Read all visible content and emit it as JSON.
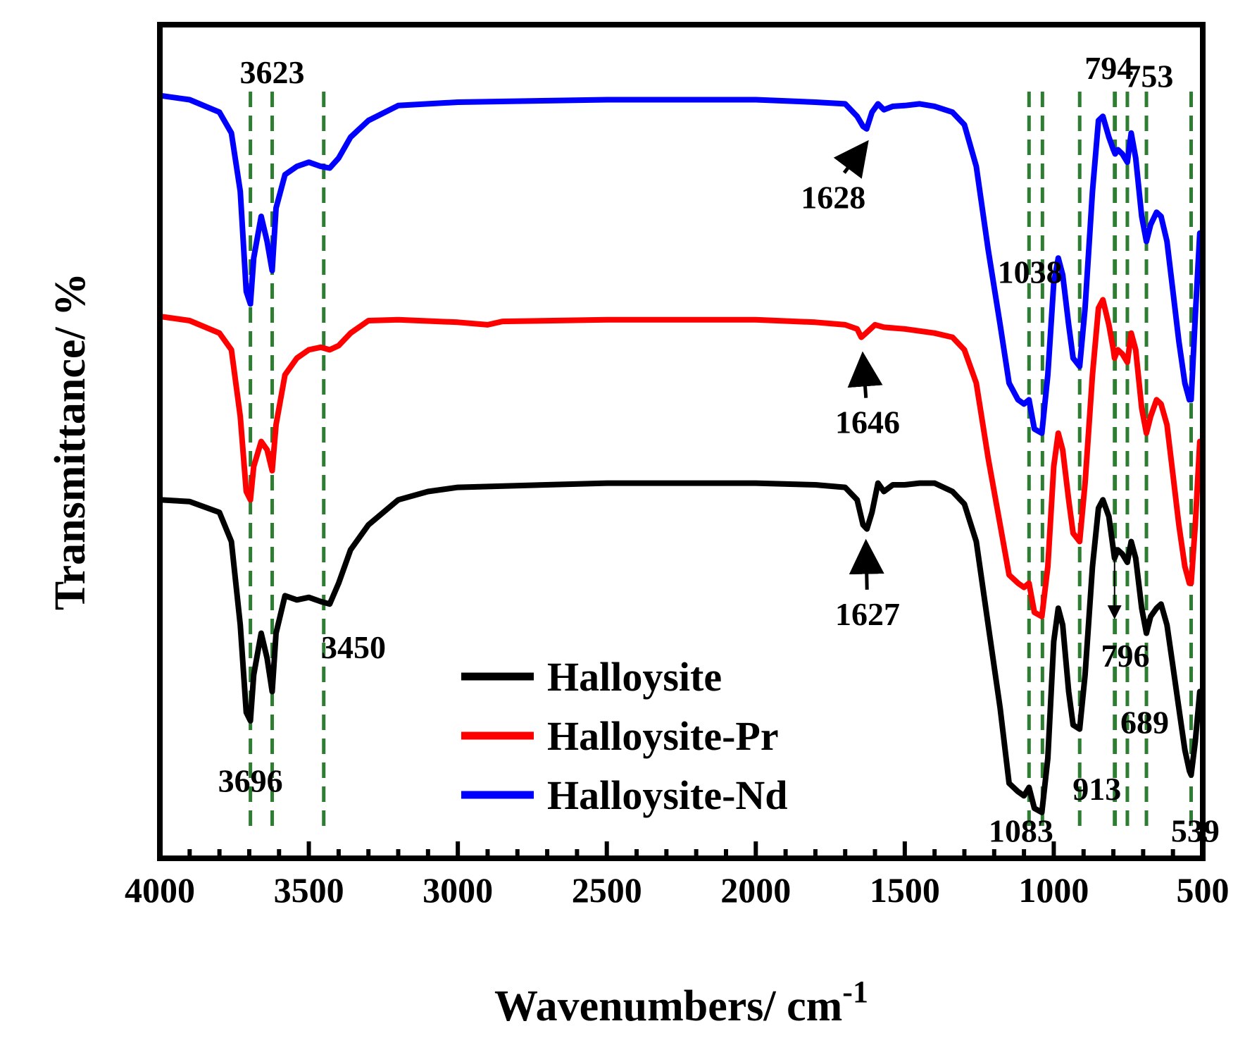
{
  "chart_data": {
    "type": "line",
    "xlabel": "Wavenumbers/ cm",
    "xlabel_superscript": "-1",
    "ylabel": "Transmittance/ %",
    "xlim": [
      4000,
      500
    ],
    "x_reversed": true,
    "ylim": [
      0,
      100
    ],
    "x_ticks": [
      4000,
      3500,
      3000,
      2500,
      2000,
      1500,
      1000,
      500
    ],
    "x_tick_labels": [
      "4000",
      "3500",
      "3000",
      "2500",
      "2000",
      "1500",
      "1000",
      "500"
    ],
    "grid": false,
    "legend_position": "bottom-center",
    "series": [
      {
        "name": "Halloysite",
        "color": "#000000",
        "points": [
          [
            4000,
            43
          ],
          [
            3900,
            42.8
          ],
          [
            3800,
            41.5
          ],
          [
            3760,
            38
          ],
          [
            3730,
            28
          ],
          [
            3710,
            17.5
          ],
          [
            3696,
            16.5
          ],
          [
            3685,
            22
          ],
          [
            3660,
            27
          ],
          [
            3640,
            24
          ],
          [
            3623,
            20
          ],
          [
            3610,
            27
          ],
          [
            3580,
            31.5
          ],
          [
            3540,
            31
          ],
          [
            3500,
            31.3
          ],
          [
            3460,
            30.8
          ],
          [
            3430,
            30.5
          ],
          [
            3400,
            33
          ],
          [
            3360,
            37
          ],
          [
            3300,
            40
          ],
          [
            3200,
            43
          ],
          [
            3100,
            44
          ],
          [
            3000,
            44.5
          ],
          [
            2500,
            45
          ],
          [
            2000,
            45
          ],
          [
            1800,
            44.8
          ],
          [
            1700,
            44.5
          ],
          [
            1660,
            43
          ],
          [
            1640,
            40
          ],
          [
            1627,
            39.5
          ],
          [
            1610,
            41.5
          ],
          [
            1590,
            45
          ],
          [
            1570,
            44
          ],
          [
            1540,
            44.8
          ],
          [
            1500,
            44.8
          ],
          [
            1450,
            45
          ],
          [
            1400,
            45
          ],
          [
            1340,
            44
          ],
          [
            1300,
            42.5
          ],
          [
            1260,
            38
          ],
          [
            1220,
            28
          ],
          [
            1180,
            18
          ],
          [
            1150,
            9
          ],
          [
            1120,
            8
          ],
          [
            1100,
            7.5
          ],
          [
            1083,
            8.5
          ],
          [
            1065,
            6
          ],
          [
            1040,
            5.5
          ],
          [
            1020,
            12
          ],
          [
            1000,
            26
          ],
          [
            985,
            30
          ],
          [
            970,
            28
          ],
          [
            950,
            20
          ],
          [
            935,
            16
          ],
          [
            913,
            15.5
          ],
          [
            895,
            22
          ],
          [
            870,
            35
          ],
          [
            850,
            42
          ],
          [
            835,
            43
          ],
          [
            815,
            41
          ],
          [
            800,
            37
          ],
          [
            796,
            36
          ],
          [
            785,
            37
          ],
          [
            770,
            36.5
          ],
          [
            753,
            35.5
          ],
          [
            740,
            38
          ],
          [
            725,
            36
          ],
          [
            705,
            30
          ],
          [
            689,
            27
          ],
          [
            675,
            29
          ],
          [
            655,
            30
          ],
          [
            640,
            30.5
          ],
          [
            620,
            28
          ],
          [
            600,
            23
          ],
          [
            580,
            18
          ],
          [
            560,
            13
          ],
          [
            545,
            10.5
          ],
          [
            539,
            10
          ],
          [
            525,
            14
          ],
          [
            510,
            20
          ]
        ]
      },
      {
        "name": "Halloysite-Pr",
        "color": "#ff0000",
        "points": [
          [
            4000,
            65
          ],
          [
            3900,
            64.5
          ],
          [
            3800,
            63
          ],
          [
            3760,
            61
          ],
          [
            3730,
            53
          ],
          [
            3710,
            44
          ],
          [
            3696,
            43
          ],
          [
            3685,
            47
          ],
          [
            3660,
            50
          ],
          [
            3640,
            49
          ],
          [
            3623,
            46.5
          ],
          [
            3610,
            52
          ],
          [
            3580,
            58
          ],
          [
            3540,
            60
          ],
          [
            3500,
            61
          ],
          [
            3460,
            61.3
          ],
          [
            3430,
            61
          ],
          [
            3400,
            61.5
          ],
          [
            3360,
            63
          ],
          [
            3300,
            64.5
          ],
          [
            3200,
            64.6
          ],
          [
            3000,
            64.3
          ],
          [
            2900,
            64
          ],
          [
            2850,
            64.4
          ],
          [
            2500,
            64.6
          ],
          [
            2000,
            64.6
          ],
          [
            1800,
            64.3
          ],
          [
            1700,
            64
          ],
          [
            1660,
            63.5
          ],
          [
            1646,
            62.5
          ],
          [
            1630,
            63
          ],
          [
            1600,
            64
          ],
          [
            1570,
            63.7
          ],
          [
            1500,
            63.5
          ],
          [
            1400,
            63
          ],
          [
            1340,
            62.5
          ],
          [
            1300,
            61
          ],
          [
            1260,
            57
          ],
          [
            1220,
            48
          ],
          [
            1180,
            40
          ],
          [
            1150,
            34
          ],
          [
            1120,
            33
          ],
          [
            1100,
            32.5
          ],
          [
            1083,
            33
          ],
          [
            1065,
            29.5
          ],
          [
            1040,
            29
          ],
          [
            1020,
            35
          ],
          [
            1000,
            47
          ],
          [
            985,
            51
          ],
          [
            970,
            49
          ],
          [
            950,
            43
          ],
          [
            935,
            39
          ],
          [
            913,
            38
          ],
          [
            895,
            45
          ],
          [
            870,
            58
          ],
          [
            850,
            66
          ],
          [
            835,
            67
          ],
          [
            815,
            64
          ],
          [
            800,
            61
          ],
          [
            796,
            60
          ],
          [
            785,
            61
          ],
          [
            770,
            60.5
          ],
          [
            753,
            59.5
          ],
          [
            740,
            63
          ],
          [
            725,
            61
          ],
          [
            705,
            54
          ],
          [
            689,
            51
          ],
          [
            675,
            53
          ],
          [
            655,
            55
          ],
          [
            640,
            54.5
          ],
          [
            620,
            52
          ],
          [
            600,
            46
          ],
          [
            580,
            40
          ],
          [
            560,
            35
          ],
          [
            545,
            33
          ],
          [
            539,
            33
          ],
          [
            525,
            40
          ],
          [
            510,
            50
          ]
        ]
      },
      {
        "name": "Halloysite-Nd",
        "color": "#0000ff",
        "points": [
          [
            4000,
            91.5
          ],
          [
            3900,
            91
          ],
          [
            3800,
            89.5
          ],
          [
            3760,
            87
          ],
          [
            3730,
            80
          ],
          [
            3710,
            68
          ],
          [
            3696,
            66.5
          ],
          [
            3685,
            72
          ],
          [
            3660,
            77
          ],
          [
            3640,
            74
          ],
          [
            3623,
            70.5
          ],
          [
            3610,
            78
          ],
          [
            3580,
            82
          ],
          [
            3540,
            83
          ],
          [
            3500,
            83.5
          ],
          [
            3460,
            83
          ],
          [
            3430,
            82.8
          ],
          [
            3400,
            84
          ],
          [
            3360,
            86.5
          ],
          [
            3300,
            88.5
          ],
          [
            3200,
            90.3
          ],
          [
            3000,
            90.7
          ],
          [
            2500,
            91
          ],
          [
            2000,
            91
          ],
          [
            1800,
            90.7
          ],
          [
            1700,
            90.5
          ],
          [
            1660,
            89
          ],
          [
            1640,
            87.8
          ],
          [
            1628,
            87.5
          ],
          [
            1610,
            89.5
          ],
          [
            1590,
            90.5
          ],
          [
            1570,
            89.8
          ],
          [
            1540,
            90.2
          ],
          [
            1500,
            90.3
          ],
          [
            1450,
            90.5
          ],
          [
            1400,
            90.2
          ],
          [
            1340,
            89.5
          ],
          [
            1300,
            88
          ],
          [
            1260,
            83
          ],
          [
            1220,
            73
          ],
          [
            1180,
            64
          ],
          [
            1150,
            57
          ],
          [
            1120,
            55
          ],
          [
            1100,
            54.5
          ],
          [
            1083,
            55
          ],
          [
            1065,
            51.5
          ],
          [
            1040,
            51
          ],
          [
            1020,
            58
          ],
          [
            1000,
            69
          ],
          [
            985,
            72
          ],
          [
            970,
            70
          ],
          [
            950,
            64
          ],
          [
            935,
            60
          ],
          [
            913,
            59
          ],
          [
            895,
            66
          ],
          [
            870,
            80
          ],
          [
            850,
            88.5
          ],
          [
            835,
            89
          ],
          [
            815,
            86.5
          ],
          [
            800,
            85
          ],
          [
            794,
            84.5
          ],
          [
            785,
            85
          ],
          [
            770,
            84.5
          ],
          [
            753,
            83.5
          ],
          [
            740,
            87
          ],
          [
            725,
            84
          ],
          [
            705,
            77
          ],
          [
            689,
            74
          ],
          [
            675,
            76
          ],
          [
            655,
            77.5
          ],
          [
            640,
            77
          ],
          [
            620,
            74
          ],
          [
            600,
            68
          ],
          [
            580,
            62
          ],
          [
            560,
            57
          ],
          [
            545,
            55
          ],
          [
            539,
            55
          ],
          [
            525,
            65
          ],
          [
            510,
            75
          ]
        ]
      }
    ],
    "reference_lines_x": [
      3696,
      3623,
      3450,
      1083,
      1038,
      913,
      796,
      794,
      753,
      689,
      539
    ],
    "annotations": [
      {
        "text": "3623",
        "x": 3623,
        "y": 93,
        "anchor": "middle"
      },
      {
        "text": "3696",
        "x": 3696,
        "y": 8,
        "anchor": "middle"
      },
      {
        "text": "3450",
        "x": 3350,
        "y": 24,
        "anchor": "middle"
      },
      {
        "text": "1628",
        "x": 1740,
        "y": 78,
        "anchor": "middle",
        "arrow_to": [
          1635,
          87
        ]
      },
      {
        "text": "1646",
        "x": 1625,
        "y": 51,
        "anchor": "middle",
        "arrow_to": [
          1640,
          61.5
        ]
      },
      {
        "text": "1627",
        "x": 1625,
        "y": 28,
        "anchor": "middle",
        "arrow_to": [
          1630,
          39
        ]
      },
      {
        "text": "1038",
        "x": 1080,
        "y": 69,
        "anchor": "middle"
      },
      {
        "text": "1083",
        "x": 1110,
        "y": 2,
        "anchor": "middle"
      },
      {
        "text": "913",
        "x": 855,
        "y": 7,
        "anchor": "middle"
      },
      {
        "text": "794",
        "x": 815,
        "y": 93.5,
        "anchor": "middle"
      },
      {
        "text": "753",
        "x": 680,
        "y": 92.5,
        "anchor": "middle"
      },
      {
        "text": "796",
        "x": 760,
        "y": 23,
        "anchor": "middle",
        "arrow_from": [
          796,
          36.5
        ],
        "arrow_to": [
          796,
          29
        ]
      },
      {
        "text": "689",
        "x": 695,
        "y": 15,
        "anchor": "middle"
      },
      {
        "text": "539",
        "x": 525,
        "y": 2,
        "anchor": "middle"
      }
    ]
  }
}
